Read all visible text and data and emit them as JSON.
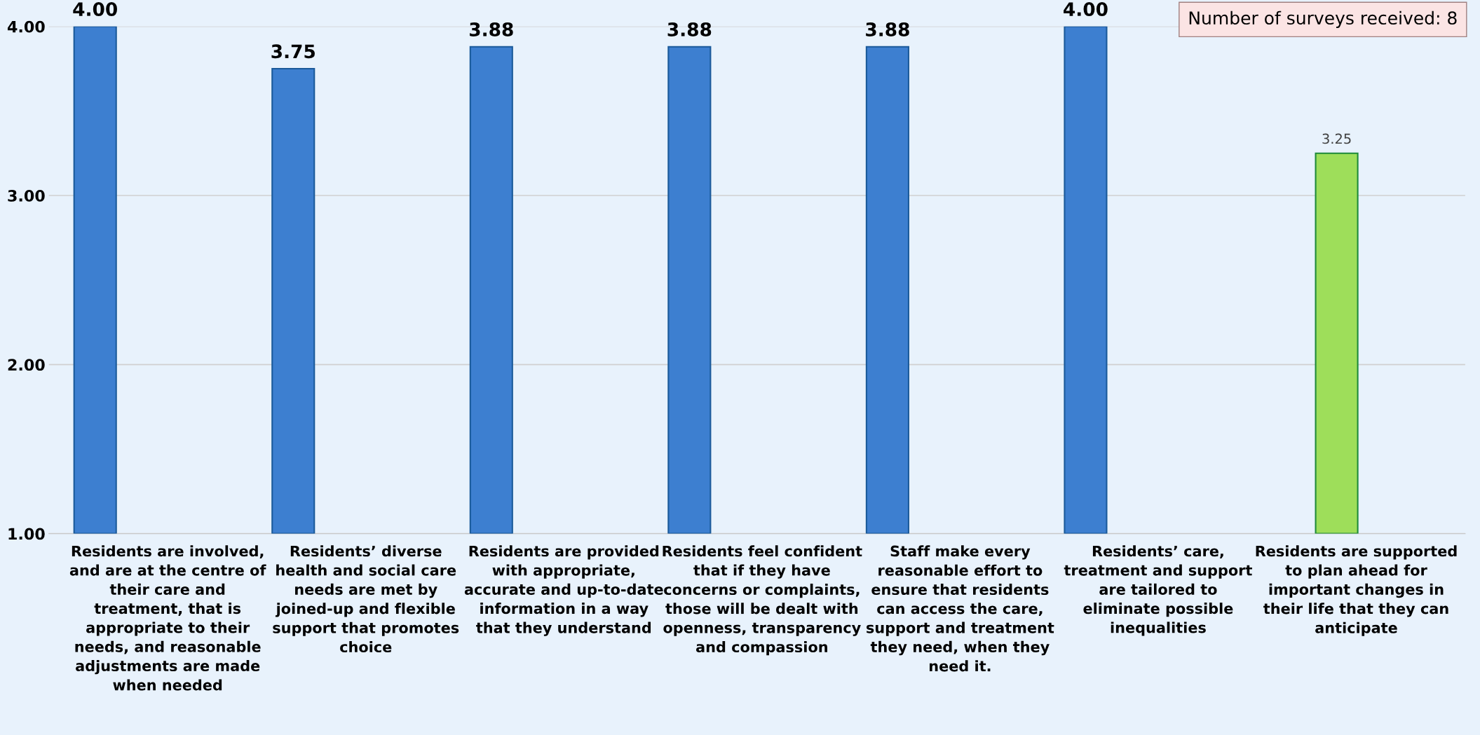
{
  "chart_data": {
    "type": "bar",
    "categories": [
      "Residents are involved, and are at the centre of their care and treatment, that is appropriate to their needs, and reasonable adjustments are made when needed",
      "Residents’ diverse health and social care needs are met by joined-up and flexible support that promotes choice",
      "Residents are provided with appropriate, accurate and up-to-date information in a way that they understand",
      "Residents feel confident that if they have concerns or complaints, those will be dealt with openness, transparency and compassion",
      "Staff make every reasonable effort to ensure that residents can access the care, support and treatment they need, when they need it.",
      "Residents’ care, treatment and support are tailored to eliminate possible inequalities",
      "Residents are supported to plan ahead for important changes in their life that they can anticipate"
    ],
    "series": [
      {
        "color": "#3d7fd0",
        "values": [
          4.0,
          3.75,
          3.88,
          3.88,
          3.88,
          4.0,
          null
        ],
        "value_labels": [
          "4.00",
          "3.75",
          "3.88",
          "3.88",
          "3.88",
          "4.00",
          null
        ]
      },
      {
        "color": "#9ede5a",
        "values": [
          null,
          null,
          null,
          null,
          null,
          null,
          3.25
        ],
        "value_labels": [
          null,
          null,
          null,
          null,
          null,
          null,
          "3.25"
        ]
      },
      {
        "color": "#f2e27a",
        "values": [
          null,
          null,
          null,
          null,
          null,
          null,
          null
        ]
      }
    ],
    "ylim": [
      1,
      4
    ],
    "yticks": [
      {
        "value": 1,
        "label": "1.00"
      },
      {
        "value": 2,
        "label": "2.00"
      },
      {
        "value": 3,
        "label": "3.00"
      },
      {
        "value": 4,
        "label": "4.00"
      }
    ],
    "grid": "y",
    "annotations": [
      "Number of surveys received: 8"
    ]
  }
}
